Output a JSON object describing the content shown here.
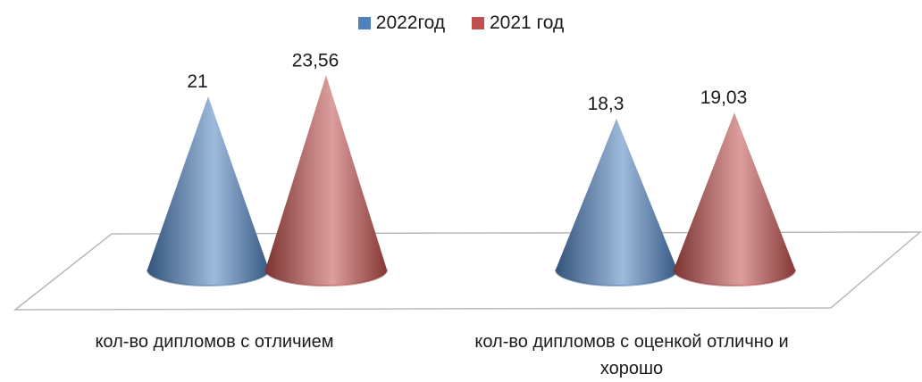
{
  "chart_data": {
    "type": "bar",
    "style": "3d-cone",
    "categories": [
      "кол-во дипломов с отличием",
      "кол-во дипломов с оценкой отлично и хорошо"
    ],
    "series": [
      {
        "name": "2022год",
        "values": [
          21,
          18.3
        ],
        "labels": [
          "21",
          "18,3"
        ],
        "color": "#4f81bd"
      },
      {
        "name": "2021 год",
        "values": [
          23.56,
          19.03
        ],
        "labels": [
          "23,56",
          "19,03"
        ],
        "color": "#c0504d"
      }
    ],
    "legend_position": "top",
    "grid": false,
    "value_axis_visible": false,
    "title": "",
    "xlabel": "",
    "ylabel": ""
  }
}
